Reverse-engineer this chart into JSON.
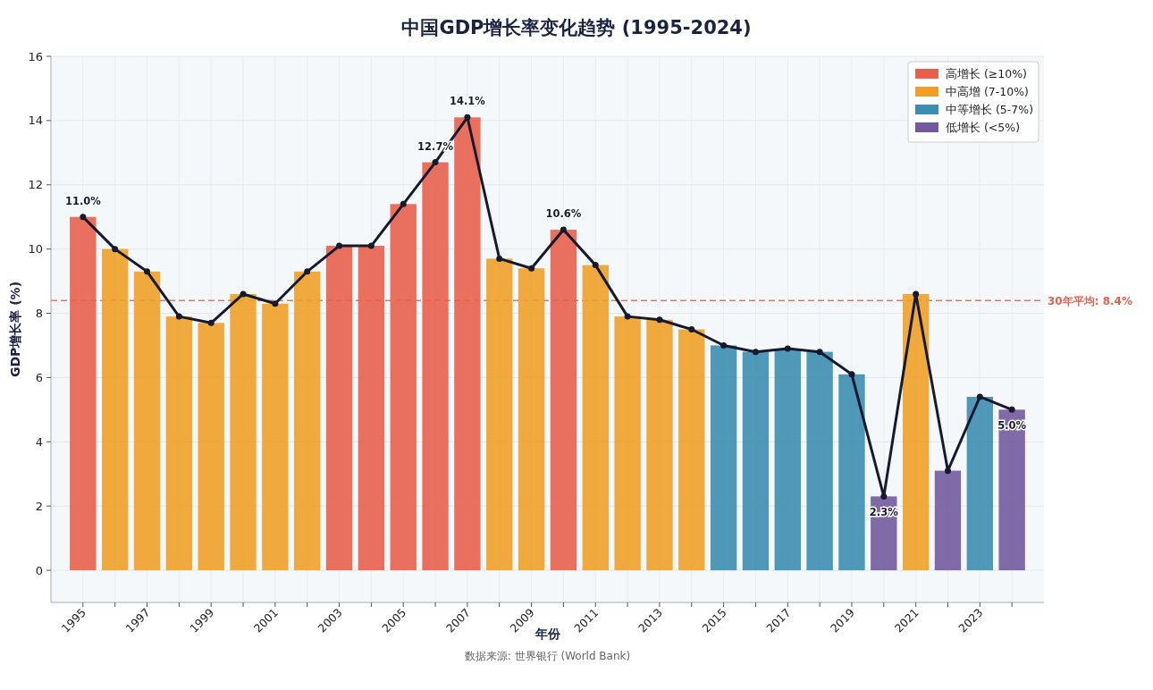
{
  "chart_data": {
    "type": "bar",
    "title": "中国GDP增长率变化趋势 (1995-2024)",
    "xlabel": "年份",
    "ylabel": "GDP增长率 (%)",
    "categories": [
      "1995",
      null,
      "1997",
      null,
      "1999",
      null,
      "2001",
      null,
      "2003",
      null,
      "2005",
      null,
      "2007",
      null,
      "2009",
      null,
      "2011",
      null,
      "2013",
      null,
      "2015",
      null,
      "2017",
      null,
      "2019",
      null,
      "2021",
      null,
      "2023",
      null
    ],
    "series": [
      {
        "name": "高增长 (≥10%)",
        "color": "#e8604c",
        "values": [
          11.0,
          null,
          null,
          null,
          null,
          null,
          null,
          null,
          10.1,
          10.1,
          11.4,
          12.7,
          14.1,
          null,
          null,
          10.6,
          null,
          null,
          null,
          null,
          null,
          null,
          null,
          null,
          null,
          null,
          null,
          null,
          null,
          null
        ]
      },
      {
        "name": "中高增 (7-10%)",
        "color": "#f0a028",
        "values": [
          null,
          10.0,
          9.3,
          7.9,
          7.7,
          8.6,
          8.3,
          9.3,
          null,
          null,
          null,
          null,
          null,
          9.7,
          9.4,
          null,
          9.5,
          7.9,
          7.8,
          7.5,
          null,
          null,
          null,
          null,
          null,
          null,
          8.6,
          null,
          null,
          null
        ]
      },
      {
        "name": "中等增长 (5-7%)",
        "color": "#3d8db0",
        "values": [
          null,
          null,
          null,
          null,
          null,
          null,
          null,
          null,
          null,
          null,
          null,
          null,
          null,
          null,
          null,
          null,
          null,
          null,
          null,
          null,
          7.0,
          6.8,
          6.9,
          6.8,
          6.1,
          null,
          null,
          null,
          5.4,
          null
        ]
      },
      {
        "name": "低增长 (<5%)",
        "color": "#735a9e",
        "values": [
          null,
          null,
          null,
          null,
          null,
          null,
          null,
          null,
          null,
          null,
          null,
          null,
          null,
          null,
          null,
          null,
          null,
          null,
          null,
          null,
          null,
          null,
          null,
          null,
          null,
          2.3,
          null,
          3.1,
          null,
          5.0
        ]
      },
      {
        "type": "line",
        "color": "#151a2e",
        "marker": "circle",
        "values": [
          11.0,
          10.0,
          9.3,
          7.9,
          7.7,
          8.6,
          8.3,
          9.3,
          10.1,
          10.1,
          11.4,
          12.7,
          14.1,
          9.7,
          9.4,
          10.6,
          9.5,
          7.9,
          7.8,
          7.5,
          7.0,
          6.8,
          6.9,
          6.8,
          6.1,
          2.3,
          8.6,
          3.1,
          5.4,
          5.0
        ],
        "value_labels": [
          "11.0%",
          null,
          null,
          null,
          null,
          null,
          null,
          null,
          null,
          null,
          null,
          "12.7%",
          "14.1%",
          null,
          null,
          "10.6%",
          null,
          null,
          null,
          null,
          null,
          null,
          null,
          null,
          null,
          "2.3%",
          null,
          null,
          null,
          "5.0%"
        ]
      }
    ],
    "ylim": [
      -1,
      16
    ],
    "yticks": [
      0,
      2,
      4,
      6,
      8,
      10,
      12,
      14,
      16
    ],
    "grid": true,
    "legend": "top right",
    "ref_lines": [
      {
        "axis": "y",
        "value": 8.4,
        "label": "30年平均: 8.4%",
        "color": "#e8604c",
        "line_style": "dashed"
      }
    ],
    "annotations": [
      "数据来源: 世界银行 (World Bank)"
    ]
  }
}
